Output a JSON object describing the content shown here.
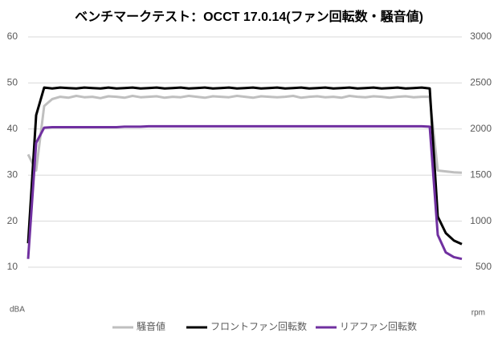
{
  "chart_data": {
    "type": "line",
    "title": "ベンチマークテスト：OCCT 17.0.14(ファン回転数・騒音値)",
    "y_label": "dBA",
    "y2_label": "rpm",
    "ylim": [
      10,
      60
    ],
    "yticks": [
      10,
      20,
      30,
      40,
      50,
      60
    ],
    "y2lim": [
      500,
      3000
    ],
    "y2ticks": [
      500,
      1000,
      1500,
      2000,
      2500,
      3000
    ],
    "grid": true,
    "legend": "bottom",
    "series": [
      {
        "name": "騒音値",
        "color": "#bfbfbf",
        "values": [
          34.5,
          31,
          45,
          46.5,
          47,
          46.8,
          47.2,
          46.9,
          47,
          46.7,
          47.1,
          47,
          46.8,
          47.2,
          46.9,
          47,
          47.1,
          46.8,
          47,
          46.9,
          47.2,
          47,
          46.8,
          47.1,
          47,
          46.9,
          47.2,
          47,
          46.8,
          47.1,
          47,
          46.9,
          47,
          47.2,
          46.8,
          47,
          47.1,
          46.9,
          47,
          46.8,
          47.2,
          47,
          46.9,
          47.1,
          47,
          46.8,
          47,
          47.1,
          46.9,
          47,
          47,
          31,
          30.8,
          30.6,
          30.5
        ]
      },
      {
        "name": "フロントファン回転数",
        "color": "#000000",
        "axis": "y2",
        "values": [
          760,
          2150,
          2450,
          2440,
          2450,
          2445,
          2440,
          2450,
          2445,
          2440,
          2450,
          2440,
          2445,
          2450,
          2440,
          2445,
          2450,
          2440,
          2445,
          2450,
          2440,
          2445,
          2450,
          2440,
          2445,
          2450,
          2440,
          2445,
          2450,
          2440,
          2445,
          2450,
          2440,
          2445,
          2450,
          2440,
          2445,
          2450,
          2440,
          2445,
          2450,
          2440,
          2445,
          2450,
          2440,
          2445,
          2450,
          2440,
          2445,
          2450,
          2440,
          1050,
          870,
          790,
          750
        ]
      },
      {
        "name": "リアファン回転数",
        "color": "#7030a0",
        "axis": "y2",
        "values": [
          590,
          1850,
          2015,
          2020,
          2020,
          2020,
          2020,
          2020,
          2020,
          2020,
          2020,
          2020,
          2025,
          2025,
          2025,
          2030,
          2030,
          2030,
          2030,
          2030,
          2030,
          2030,
          2030,
          2030,
          2030,
          2030,
          2030,
          2030,
          2030,
          2030,
          2030,
          2030,
          2030,
          2030,
          2030,
          2030,
          2030,
          2030,
          2030,
          2030,
          2030,
          2030,
          2030,
          2030,
          2030,
          2030,
          2030,
          2030,
          2030,
          2030,
          2025,
          850,
          660,
          610,
          590
        ]
      }
    ]
  }
}
